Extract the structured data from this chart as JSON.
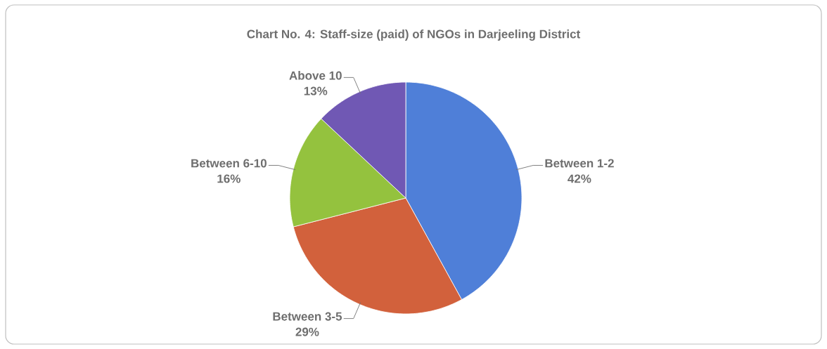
{
  "chart_data": {
    "type": "pie",
    "title": "Chart No. 4: Staff-size (paid) of NGOs in Darjeeling District",
    "categories": [
      "Between 1-2",
      "Between 3-5",
      "Between 6-10",
      "Above 10"
    ],
    "values": [
      42,
      29,
      16,
      13
    ],
    "value_labels": [
      "42%",
      "29%",
      "16%",
      "13%"
    ],
    "colors": [
      "#4f7fd8",
      "#d2613c",
      "#94c23e",
      "#7058b4"
    ]
  }
}
